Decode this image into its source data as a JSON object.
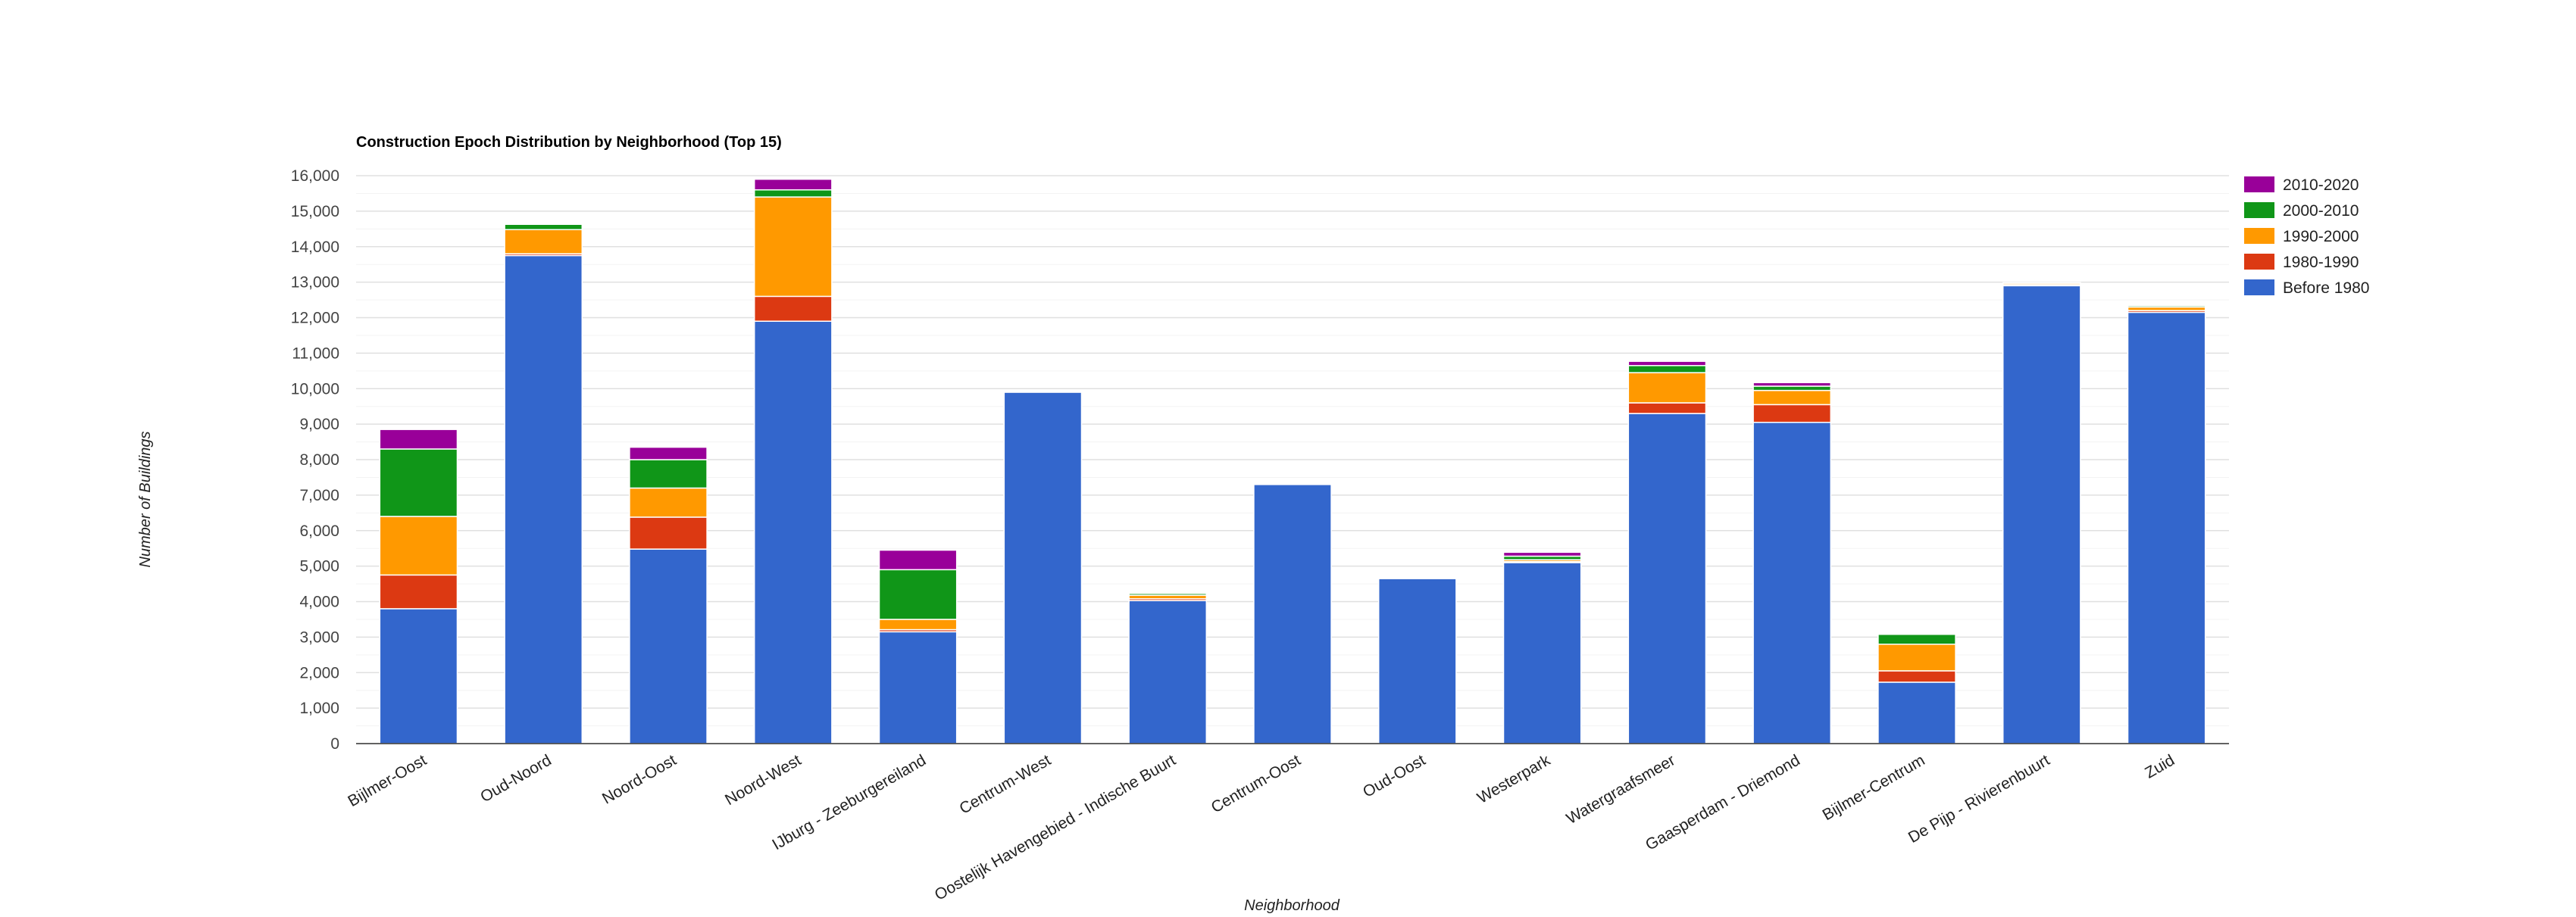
{
  "chart_data": {
    "type": "bar",
    "stacked": true,
    "title": "Construction Epoch Distribution by Neighborhood (Top 15)",
    "xlabel": "Neighborhood",
    "ylabel": "Number of Buildings",
    "ylim": [
      0,
      16000
    ],
    "yticks": [
      0,
      1000,
      2000,
      3000,
      4000,
      5000,
      6000,
      7000,
      8000,
      9000,
      10000,
      11000,
      12000,
      13000,
      14000,
      15000,
      16000
    ],
    "ytick_labels": [
      "0",
      "1,000",
      "2,000",
      "3,000",
      "4,000",
      "5,000",
      "6,000",
      "7,000",
      "8,000",
      "9,000",
      "10,000",
      "11,000",
      "12,000",
      "13,000",
      "14,000",
      "15,000",
      "16,000"
    ],
    "grid": true,
    "legend_position": "right",
    "categories": [
      "Bijlmer-Oost",
      "Oud-Noord",
      "Noord-Oost",
      "Noord-West",
      "IJburg - Zeeburgereiland",
      "Centrum-West",
      "Oostelijk Havengebied - Indische Buurt",
      "Centrum-Oost",
      "Oud-Oost",
      "Westerpark",
      "Watergraafsmeer",
      "Gaasperdam - Driemond",
      "Bijlmer-Centrum",
      "De Pijp - Rivierenbuurt",
      "Zuid"
    ],
    "series": [
      {
        "name": "Before 1980",
        "color": "#3366cc",
        "values": [
          3800,
          13750,
          5480,
          11900,
          3150,
          9900,
          4030,
          7300,
          4650,
          5100,
          9300,
          9050,
          1730,
          12900,
          12150
        ]
      },
      {
        "name": "1980-1990",
        "color": "#dc3912",
        "values": [
          950,
          50,
          900,
          700,
          60,
          10,
          50,
          20,
          20,
          30,
          300,
          500,
          320,
          30,
          50
        ]
      },
      {
        "name": "1990-2000",
        "color": "#ff9900",
        "values": [
          1650,
          680,
          820,
          2800,
          290,
          20,
          100,
          30,
          20,
          50,
          850,
          400,
          750,
          40,
          100
        ]
      },
      {
        "name": "2000-2010",
        "color": "#109618",
        "values": [
          1900,
          150,
          800,
          200,
          1400,
          20,
          50,
          20,
          10,
          100,
          200,
          120,
          280,
          10,
          40
        ]
      },
      {
        "name": "2010-2020",
        "color": "#990099",
        "values": [
          550,
          20,
          350,
          300,
          550,
          10,
          20,
          20,
          10,
          110,
          120,
          100,
          20,
          10,
          20
        ]
      }
    ],
    "legend_order": [
      "2010-2020",
      "2000-2010",
      "1990-2000",
      "1980-1990",
      "Before 1980"
    ]
  }
}
